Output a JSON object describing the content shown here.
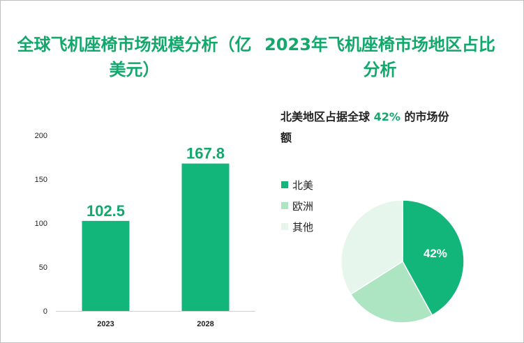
{
  "titles": {
    "left": "全球飞机座椅市场规模分析（亿美元）",
    "right": "2023年飞机座椅市场地区占比分析"
  },
  "headline": {
    "prefix": "北美地区占据全球",
    "value": "42%",
    "suffix": "的市场份额"
  },
  "chart_data": [
    {
      "type": "bar",
      "title": "全球飞机座椅市场规模分析（亿美元）",
      "categories": [
        "2023",
        "2028"
      ],
      "values": [
        102.5,
        167.8
      ],
      "value_labels": [
        "102.5",
        "167.8"
      ],
      "ylim": [
        0,
        200
      ],
      "yticks": [
        0,
        50,
        100,
        150,
        200
      ],
      "grid": false,
      "bar_color": "#12b57a"
    },
    {
      "type": "pie",
      "title": "2023年飞机座椅市场地区占比分析",
      "labels": [
        "北美",
        "欧洲",
        "其他"
      ],
      "values": [
        42,
        24,
        34
      ],
      "slice_labels": [
        "42%",
        "",
        ""
      ],
      "colors": [
        "#12b57a",
        "#ade5c3",
        "#e6f6ec"
      ],
      "legend_position": "left"
    }
  ]
}
